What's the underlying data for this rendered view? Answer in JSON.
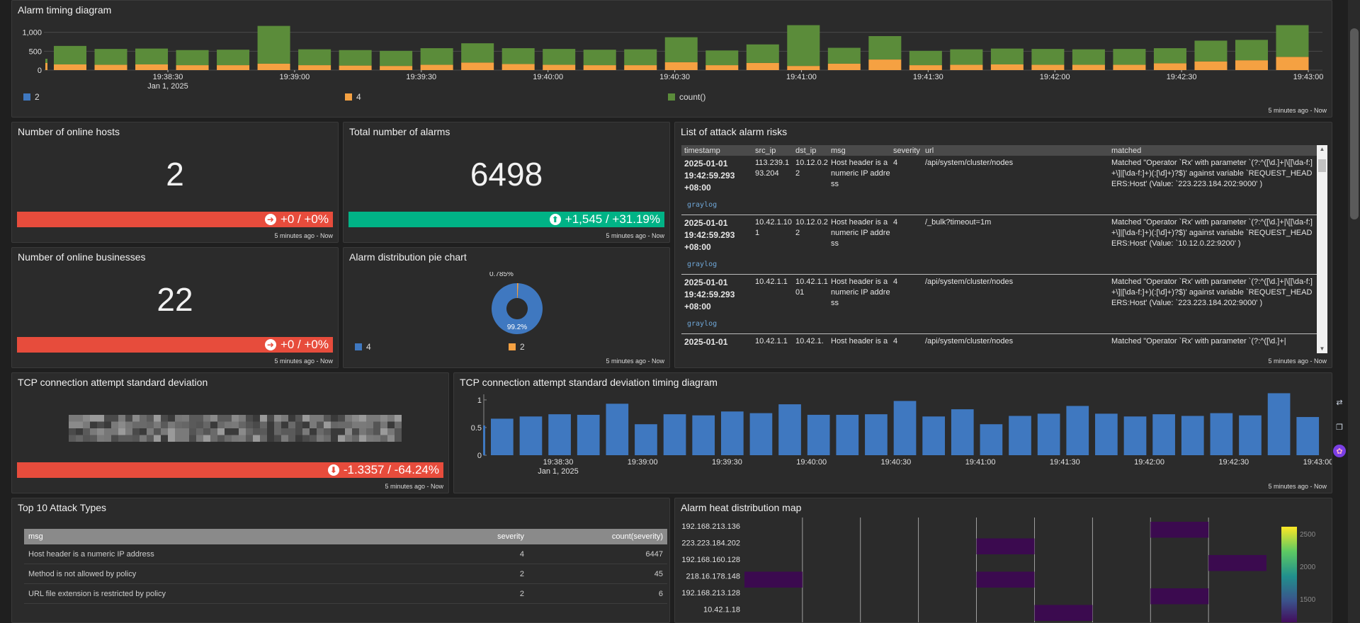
{
  "panels": {
    "alarm_timing": {
      "title": "Alarm timing diagram",
      "time_range": "5 minutes ago - Now"
    },
    "online_hosts": {
      "title": "Number of online hosts",
      "value": "2",
      "trend": "+0 / +0%",
      "time_range": "5 minutes ago - Now"
    },
    "total_alarms": {
      "title": "Total number of alarms",
      "value": "6498",
      "trend": "+1,545 / +31.19%",
      "time_range": "5 minutes ago - Now"
    },
    "online_businesses": {
      "title": "Number of online businesses",
      "value": "22",
      "trend": "+0 / +0%",
      "time_range": "5 minutes ago - Now"
    },
    "pie": {
      "title": "Alarm distribution pie chart",
      "time_range": "5 minutes ago - Now"
    },
    "attack_list": {
      "title": "List of attack alarm risks",
      "time_range": "5 minutes ago - Now",
      "columns": [
        "timestamp",
        "src_ip",
        "dst_ip",
        "msg",
        "severity",
        "url",
        "matched"
      ],
      "rows": [
        {
          "ts": "2025-01-01 19:42:59.293 +08:00",
          "src_ip": "113.239.193.204",
          "dst_ip": "10.12.0.22",
          "msg": "Host header is a numeric IP address",
          "severity": "4",
          "url": "/api/system/cluster/nodes",
          "matched": "Matched \"Operator `Rx' with parameter `(?:^([\\d.]+|\\[[\\da-f:]+\\]|[\\da-f:]+)(:[\\d]+)?$)' against variable `REQUEST_HEADERS:Host' (Value: `223.223.184.202:9000' )",
          "source": "graylog"
        },
        {
          "ts": "2025-01-01 19:42:59.293 +08:00",
          "src_ip": "10.42.1.101",
          "dst_ip": "10.12.0.22",
          "msg": "Host header is a numeric IP address",
          "severity": "4",
          "url": "/_bulk?timeout=1m",
          "matched": "Matched \"Operator `Rx' with parameter `(?:^([\\d.]+|\\[[\\da-f:]+\\]|[\\da-f:]+)(:[\\d]+)?$)' against variable `REQUEST_HEADERS:Host' (Value: `10.12.0.22:9200' )",
          "source": "graylog"
        },
        {
          "ts": "2025-01-01 19:42:59.293 +08:00",
          "src_ip": "10.42.1.1",
          "dst_ip": "10.42.1.101",
          "msg": "Host header is a numeric IP address",
          "severity": "4",
          "url": "/api/system/cluster/nodes",
          "matched": "Matched \"Operator `Rx' with parameter `(?:^([\\d.]+|\\[[\\da-f:]+\\]|[\\da-f:]+)(:[\\d]+)?$)' against variable `REQUEST_HEADERS:Host' (Value: `223.223.184.202:9000' )",
          "source": "graylog"
        },
        {
          "ts": "2025-01-01",
          "src_ip": "10.42.1.1",
          "dst_ip": "10.42.1.",
          "msg": "Host header is a",
          "severity": "4",
          "url": "/api/system/cluster/nodes",
          "matched": "Matched \"Operator `Rx' with parameter `(?:^([\\d.]+|",
          "source": ""
        }
      ]
    },
    "tcp_std": {
      "title": "TCP connection attempt standard deviation",
      "trend": "-1.3357 / -64.24%",
      "time_range": "5 minutes ago - Now"
    },
    "tcp_timing": {
      "title": "TCP connection attempt standard deviation timing diagram",
      "time_range": "5 minutes ago - Now"
    },
    "top10": {
      "title": "Top 10 Attack Types",
      "columns": [
        "msg",
        "severity",
        "count(severity)"
      ],
      "rows": [
        [
          "Host header is a numeric IP address",
          "4",
          "6447"
        ],
        [
          "Method is not allowed by policy",
          "2",
          "45"
        ],
        [
          "URL file extension is restricted by policy",
          "2",
          "6"
        ]
      ]
    },
    "heatmap": {
      "title": "Alarm heat distribution map"
    }
  },
  "chart_data": [
    {
      "type": "bar",
      "stacked": true,
      "yticks": [
        "1,000",
        "500",
        "0"
      ],
      "ylim": [
        0,
        1200
      ],
      "xticks": [
        "19:38:30",
        "19:39:00",
        "19:39:30",
        "19:40:00",
        "19:40:30",
        "19:41:00",
        "19:41:30",
        "19:42:00",
        "19:42:30",
        "19:43:00"
      ],
      "xsub": "Jan 1, 2025",
      "legend": [
        "2",
        "4",
        "count()"
      ],
      "colors": {
        "2": "#3f78c0",
        "4": "#f5a142",
        "count()": "#5b8c3a"
      },
      "series": [
        {
          "name": "4",
          "values": [
            150,
            140,
            150,
            130,
            130,
            170,
            130,
            120,
            110,
            140,
            200,
            160,
            140,
            130,
            130,
            210,
            130,
            190,
            110,
            170,
            280,
            130,
            140,
            150,
            140,
            140,
            140,
            180,
            230,
            260,
            350
          ]
        },
        {
          "name": "count()",
          "values": [
            490,
            420,
            420,
            400,
            410,
            1000,
            420,
            410,
            400,
            440,
            510,
            420,
            420,
            410,
            420,
            660,
            390,
            490,
            1080,
            420,
            620,
            380,
            410,
            420,
            420,
            410,
            420,
            400,
            550,
            540,
            840
          ]
        }
      ]
    },
    {
      "type": "pie",
      "slices": [
        {
          "label": "4",
          "value": 99.2,
          "display": "99.2%"
        },
        {
          "label": "2",
          "value": 0.785,
          "display": "0.785%"
        }
      ],
      "legend": [
        "4",
        "2"
      ],
      "colors": {
        "4": "#3f78c0",
        "2": "#f5a142"
      }
    },
    {
      "type": "bar",
      "yticks": [
        "1",
        "0.5",
        "0"
      ],
      "ylim": [
        0,
        1.1
      ],
      "xticks": [
        "19:38:30",
        "19:39:00",
        "19:39:30",
        "19:40:00",
        "19:40:30",
        "19:41:00",
        "19:41:30",
        "19:42:00",
        "19:42:30",
        "19:43:00"
      ],
      "xsub": "Jan 1, 2025",
      "values": [
        0.66,
        0.7,
        0.74,
        0.73,
        0.93,
        0.56,
        0.74,
        0.72,
        0.79,
        0.76,
        0.92,
        0.73,
        0.73,
        0.74,
        0.98,
        0.7,
        0.83,
        0.56,
        0.71,
        0.75,
        0.89,
        0.75,
        0.7,
        0.74,
        0.71,
        0.76,
        0.72,
        1.12,
        0.69
      ]
    },
    {
      "type": "heatmap",
      "ylabels": [
        "192.168.213.136",
        "223.223.184.202",
        "192.168.160.128",
        "218.16.178.148",
        "192.168.213.128",
        "10.42.1.18"
      ],
      "colorbar_ticks": [
        "2500",
        "2000",
        "1500"
      ]
    }
  ]
}
